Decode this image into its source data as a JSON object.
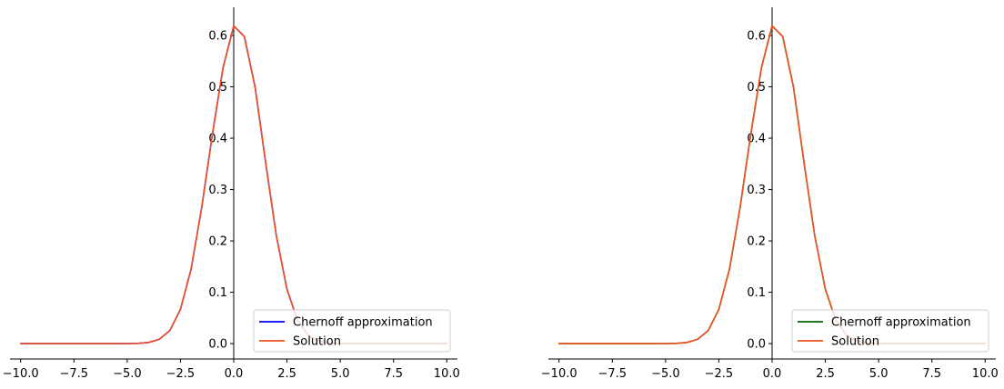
{
  "chart_data": [
    {
      "type": "line",
      "title": "",
      "xlabel": "",
      "ylabel": "",
      "xlim": [
        -10.5,
        10.5
      ],
      "ylim": [
        -0.03,
        0.655
      ],
      "x_ticks": [
        -10,
        -7.5,
        -5,
        -2.5,
        0,
        2.5,
        5,
        7.5,
        10
      ],
      "x_tick_labels": [
        "−10.0",
        "−7.5",
        "−5.0",
        "−2.5",
        "0.0",
        "2.5",
        "5.0",
        "7.5",
        "10.0"
      ],
      "y_ticks": [
        0,
        0.1,
        0.2,
        0.3,
        0.4,
        0.5,
        0.6
      ],
      "y_tick_labels": [
        "0.0",
        "0.1",
        "0.2",
        "0.3",
        "0.4",
        "0.5",
        "0.6"
      ],
      "spines": "centered",
      "grid": false,
      "legend_position": "lower-right",
      "x": [
        -10,
        -9,
        -8,
        -7,
        -6,
        -5,
        -4.5,
        -4,
        -3.5,
        -3,
        -2.5,
        -2,
        -1.5,
        -1,
        -0.5,
        0,
        0.5,
        1,
        1.5,
        2,
        2.5,
        3,
        3.5,
        4,
        4.5,
        5,
        6,
        7,
        8,
        9,
        10
      ],
      "series": [
        {
          "name": "Chernoff approximation",
          "color": "#0000ff",
          "values": [
            0,
            0,
            0,
            0,
            0,
            0.0001,
            0.0005,
            0.0022,
            0.0083,
            0.0253,
            0.0665,
            0.1451,
            0.2659,
            0.4079,
            0.5375,
            0.6188,
            0.5978,
            0.5003,
            0.3523,
            0.2101,
            0.1054,
            0.0447,
            0.016,
            0.0048,
            0.0012,
            0.0003,
            0,
            0,
            0,
            0,
            0
          ]
        },
        {
          "name": "Solution",
          "color": "#f0501e",
          "values": [
            0,
            0,
            0,
            0,
            0,
            0.0001,
            0.0005,
            0.0022,
            0.0083,
            0.0253,
            0.0665,
            0.1451,
            0.2659,
            0.4079,
            0.5375,
            0.6188,
            0.5978,
            0.5003,
            0.3523,
            0.2101,
            0.1054,
            0.0447,
            0.016,
            0.0048,
            0.0012,
            0.0003,
            0,
            0,
            0,
            0,
            0
          ]
        }
      ]
    },
    {
      "type": "line",
      "title": "",
      "xlabel": "",
      "ylabel": "",
      "xlim": [
        -10.5,
        10.5
      ],
      "ylim": [
        -0.03,
        0.655
      ],
      "x_ticks": [
        -10,
        -7.5,
        -5,
        -2.5,
        0,
        2.5,
        5,
        7.5,
        10
      ],
      "x_tick_labels": [
        "−10.0",
        "−7.5",
        "−5.0",
        "−2.5",
        "0.0",
        "2.5",
        "5.0",
        "7.5",
        "10.0"
      ],
      "y_ticks": [
        0,
        0.1,
        0.2,
        0.3,
        0.4,
        0.5,
        0.6
      ],
      "y_tick_labels": [
        "0.0",
        "0.1",
        "0.2",
        "0.3",
        "0.4",
        "0.5",
        "0.6"
      ],
      "spines": "centered",
      "grid": false,
      "legend_position": "lower-right",
      "x": [
        -10,
        -9,
        -8,
        -7,
        -6,
        -5,
        -4.5,
        -4,
        -3.5,
        -3,
        -2.5,
        -2,
        -1.5,
        -1,
        -0.5,
        0,
        0.5,
        1,
        1.5,
        2,
        2.5,
        3,
        3.5,
        4,
        4.5,
        5,
        6,
        7,
        8,
        9,
        10
      ],
      "series": [
        {
          "name": "Chernoff approximation",
          "color": "#006400",
          "values": [
            0,
            0,
            0,
            0,
            0,
            0.0001,
            0.0005,
            0.0022,
            0.0083,
            0.0253,
            0.0665,
            0.1451,
            0.2659,
            0.4079,
            0.5375,
            0.6188,
            0.5978,
            0.5003,
            0.3523,
            0.2101,
            0.1054,
            0.0447,
            0.016,
            0.0048,
            0.0012,
            0.0003,
            0,
            0,
            0,
            0,
            0
          ]
        },
        {
          "name": "Solution",
          "color": "#f0501e",
          "values": [
            0,
            0,
            0,
            0,
            0,
            0.0001,
            0.0005,
            0.0022,
            0.0083,
            0.0253,
            0.0665,
            0.1451,
            0.2659,
            0.4079,
            0.5375,
            0.6188,
            0.5978,
            0.5003,
            0.3523,
            0.2101,
            0.1054,
            0.0447,
            0.016,
            0.0048,
            0.0012,
            0.0003,
            0,
            0,
            0,
            0,
            0
          ]
        }
      ]
    }
  ]
}
